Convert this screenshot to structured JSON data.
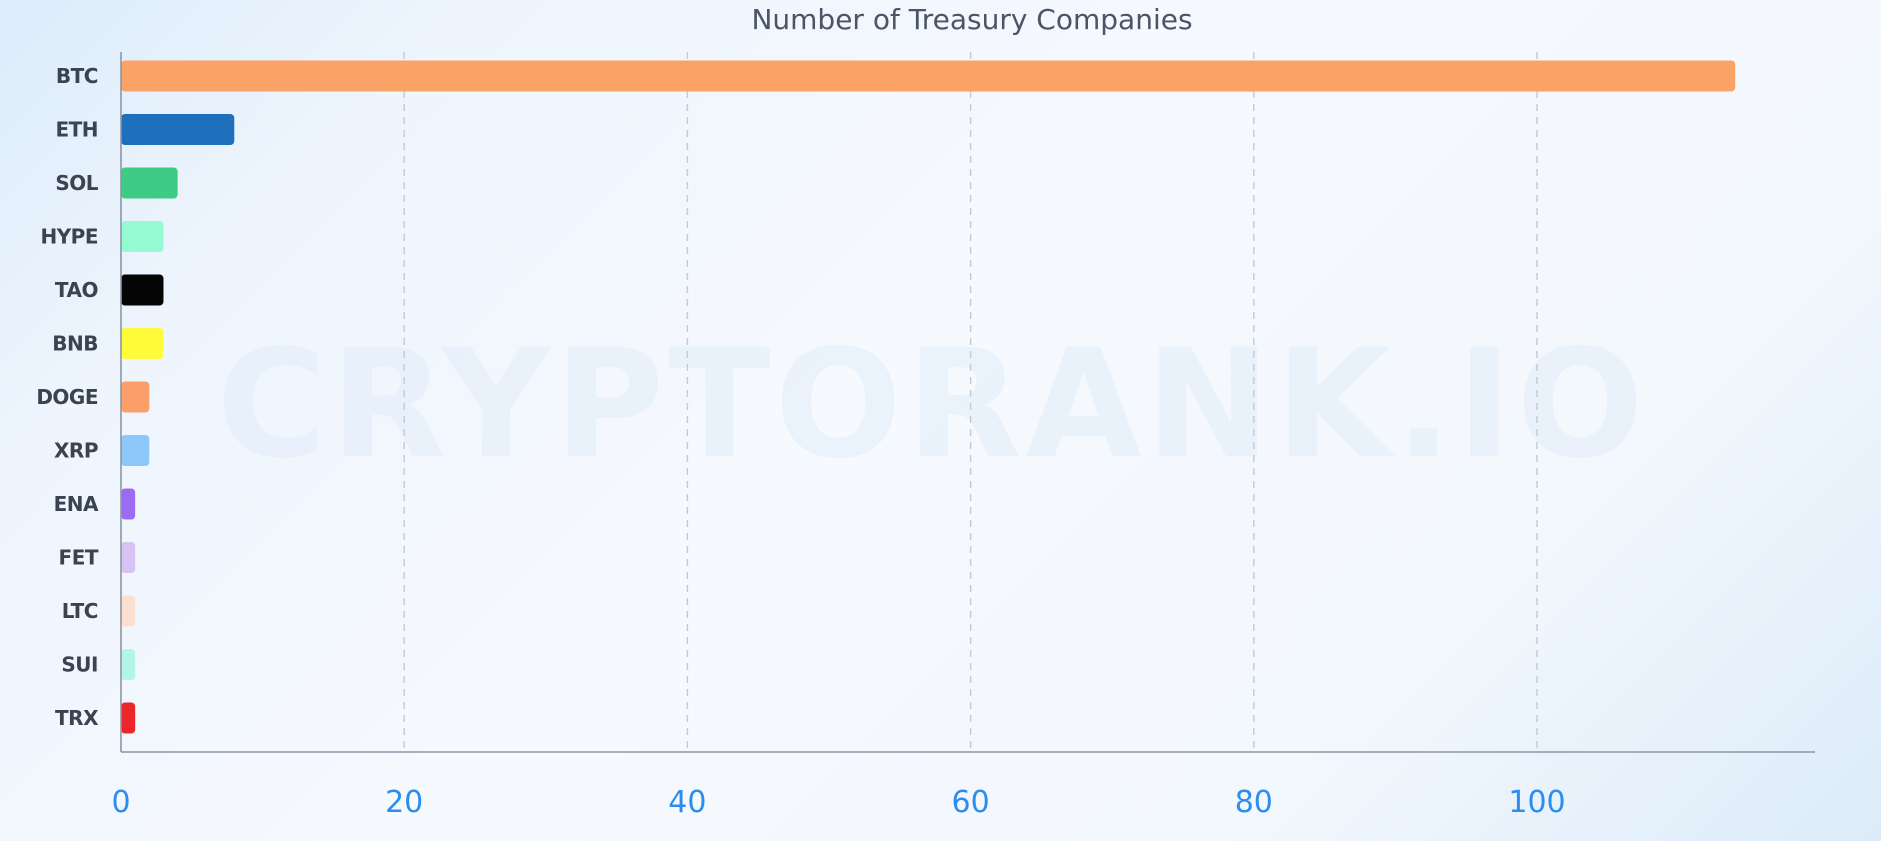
{
  "chart_data": {
    "type": "bar",
    "orientation": "horizontal",
    "title": "Number of Treasury Companies",
    "watermark": "CRYPTORANK.IO",
    "categories": [
      "BTC",
      "ETH",
      "SOL",
      "HYPE",
      "TAO",
      "BNB",
      "DOGE",
      "XRP",
      "ENA",
      "FET",
      "LTC",
      "SUI",
      "TRX"
    ],
    "values": [
      114,
      8,
      4,
      3,
      3,
      3,
      2,
      2,
      1,
      1,
      1,
      1,
      1
    ],
    "colors": [
      "#fba267",
      "#1e6fbc",
      "#3ecb86",
      "#93fad2",
      "#050505",
      "#fdfb3a",
      "#fb9f6a",
      "#8cc8fa",
      "#9b6bf1",
      "#d6c2f3",
      "#fbdfd0",
      "#b3f5e6",
      "#ec2528"
    ],
    "xlim": [
      0,
      120
    ],
    "xticks": [
      0,
      20,
      40,
      60,
      80,
      100
    ],
    "xlabel": "",
    "ylabel": "",
    "grid": "vertical dashed",
    "legend": "none"
  }
}
